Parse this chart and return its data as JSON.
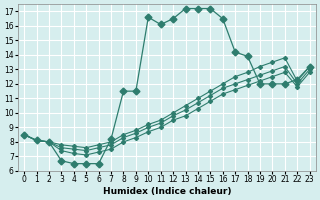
{
  "title": "",
  "xlabel": "Humidex (Indice chaleur)",
  "ylabel": "",
  "bg_color": "#d6eeee",
  "grid_color": "#ffffff",
  "line_color": "#2e7d6e",
  "xlim": [
    -0.5,
    23.5
  ],
  "ylim": [
    6,
    17.5
  ],
  "xticks": [
    0,
    1,
    2,
    3,
    4,
    5,
    6,
    7,
    8,
    9,
    10,
    11,
    12,
    13,
    14,
    15,
    16,
    17,
    18,
    19,
    20,
    21,
    22,
    23
  ],
  "yticks": [
    6,
    7,
    8,
    9,
    10,
    11,
    12,
    13,
    14,
    15,
    16,
    17
  ],
  "main_x": [
    0,
    1,
    2,
    3,
    4,
    5,
    6,
    7,
    8,
    9,
    10,
    11,
    12,
    13,
    14,
    15,
    16,
    17,
    18,
    19,
    20,
    21,
    22,
    23
  ],
  "main_y": [
    8.5,
    8.1,
    8.0,
    6.7,
    6.5,
    6.5,
    6.5,
    8.2,
    11.5,
    11.5,
    16.6,
    16.1,
    16.5,
    17.2,
    17.2,
    17.2,
    16.5,
    14.2,
    13.9,
    12.0,
    12.0,
    12.0,
    12.3,
    13.2
  ],
  "lineA_x": [
    0,
    1,
    2,
    3,
    4,
    5,
    6,
    7,
    8,
    9,
    10,
    11,
    12,
    13,
    14,
    15,
    16,
    17,
    18,
    19,
    20,
    21,
    22,
    23
  ],
  "lineA_y": [
    8.5,
    8.1,
    8.0,
    7.8,
    7.7,
    7.6,
    7.8,
    8.0,
    8.5,
    8.8,
    9.2,
    9.5,
    10.0,
    10.5,
    11.0,
    11.5,
    12.0,
    12.5,
    12.8,
    13.2,
    13.5,
    13.8,
    12.2,
    13.2
  ],
  "lineB_x": [
    0,
    1,
    2,
    3,
    4,
    5,
    6,
    7,
    8,
    9,
    10,
    11,
    12,
    13,
    14,
    15,
    16,
    17,
    18,
    19,
    20,
    21,
    22,
    23
  ],
  "lineB_y": [
    8.5,
    8.1,
    8.0,
    7.6,
    7.5,
    7.4,
    7.6,
    7.8,
    8.3,
    8.6,
    9.0,
    9.3,
    9.8,
    10.2,
    10.7,
    11.2,
    11.7,
    12.0,
    12.3,
    12.6,
    12.9,
    13.2,
    12.0,
    13.0
  ],
  "lineC_x": [
    0,
    1,
    2,
    3,
    4,
    5,
    6,
    7,
    8,
    9,
    10,
    11,
    12,
    13,
    14,
    15,
    16,
    17,
    18,
    19,
    20,
    21,
    22,
    23
  ],
  "lineC_y": [
    8.5,
    8.1,
    8.0,
    7.4,
    7.2,
    7.1,
    7.3,
    7.5,
    8.0,
    8.3,
    8.7,
    9.0,
    9.5,
    9.8,
    10.3,
    10.8,
    11.3,
    11.6,
    11.9,
    12.2,
    12.5,
    12.8,
    11.8,
    12.8
  ],
  "marker_size": 3.5
}
